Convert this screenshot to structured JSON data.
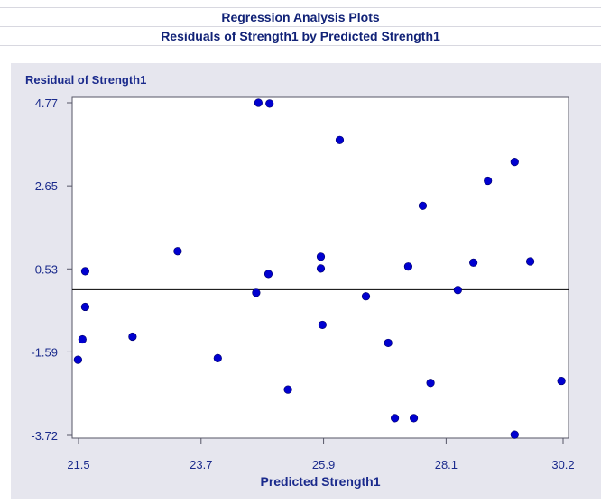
{
  "titles": {
    "line1": "Regression Analysis Plots",
    "line2": "Residuals of Strength1 by Predicted Strength1"
  },
  "colors": {
    "title": "#112277",
    "panel_background": "#e6e6ee",
    "plot_background": "#ffffff",
    "marker": "#0000d0",
    "axis_text": "#1a2a8c"
  },
  "chart_data": {
    "type": "scatter",
    "title": "",
    "xlabel": "Predicted Strength1",
    "ylabel": "Residual of Strength1",
    "xlim": [
      21.5,
      30.2
    ],
    "ylim": [
      -3.72,
      4.77
    ],
    "x_ticks": [
      "21.5",
      "23.7",
      "25.9",
      "28.1",
      "30.2"
    ],
    "y_ticks": [
      "4.77",
      "2.65",
      "0.53",
      "-1.59",
      "-3.72"
    ],
    "reference_line_y": 0.0,
    "grid": false,
    "marker": "circle",
    "points": [
      {
        "x": 21.49,
        "y": -1.79
      },
      {
        "x": 21.57,
        "y": -1.27
      },
      {
        "x": 21.62,
        "y": -0.44
      },
      {
        "x": 21.62,
        "y": 0.47
      },
      {
        "x": 22.47,
        "y": -1.2
      },
      {
        "x": 23.28,
        "y": 0.98
      },
      {
        "x": 24.0,
        "y": -1.75
      },
      {
        "x": 24.69,
        "y": -0.08
      },
      {
        "x": 24.73,
        "y": 4.77
      },
      {
        "x": 24.91,
        "y": 0.4
      },
      {
        "x": 24.93,
        "y": 4.75
      },
      {
        "x": 25.26,
        "y": -2.55
      },
      {
        "x": 25.85,
        "y": 0.54
      },
      {
        "x": 25.85,
        "y": 0.84
      },
      {
        "x": 25.88,
        "y": -0.9
      },
      {
        "x": 26.19,
        "y": 3.82
      },
      {
        "x": 26.66,
        "y": -0.17
      },
      {
        "x": 27.06,
        "y": -1.36
      },
      {
        "x": 27.18,
        "y": -3.28
      },
      {
        "x": 27.42,
        "y": 0.59
      },
      {
        "x": 27.52,
        "y": -3.28
      },
      {
        "x": 27.68,
        "y": 2.14
      },
      {
        "x": 27.82,
        "y": -2.38
      },
      {
        "x": 28.31,
        "y": -0.01
      },
      {
        "x": 28.59,
        "y": 0.69
      },
      {
        "x": 28.85,
        "y": 2.78
      },
      {
        "x": 29.33,
        "y": 3.26
      },
      {
        "x": 29.33,
        "y": -3.7
      },
      {
        "x": 29.61,
        "y": 0.72
      },
      {
        "x": 30.17,
        "y": -2.33
      }
    ]
  }
}
